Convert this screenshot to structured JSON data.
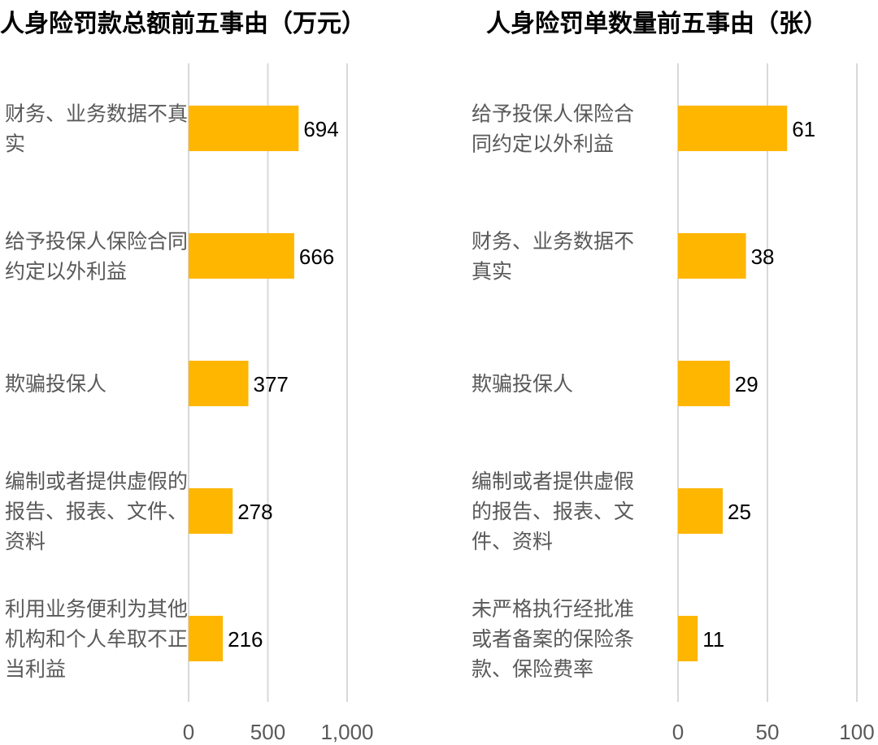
{
  "colors": {
    "bar": "#FFB600",
    "grid": "#D9D9D9",
    "text": "#595959",
    "value_text": "#000000"
  },
  "chart_data": [
    {
      "type": "bar",
      "orientation": "horizontal",
      "title": "人身险罚款总额前五事由（万元）",
      "categories": [
        "财务、业务数据不真实",
        "给予投保人保险合同约定以外利益",
        "欺骗投保人",
        "编制或者提供虚假的报告、报表、文件、资料",
        "利用业务便利为其他机构和个人牟取不正当利益"
      ],
      "values": [
        694,
        666,
        377,
        278,
        216
      ],
      "value_labels": [
        "694",
        "666",
        "377",
        "278",
        "216"
      ],
      "xlim": [
        0,
        1000
      ],
      "ticks": [
        0,
        500,
        1000
      ],
      "tick_labels": [
        "0",
        "500",
        "1,000"
      ],
      "grid": true,
      "legend": "none"
    },
    {
      "type": "bar",
      "orientation": "horizontal",
      "title": "人身险罚单数量前五事由（张）",
      "categories": [
        "给予投保人保险合同约定以外利益",
        "财务、业务数据不真实",
        "欺骗投保人",
        "编制或者提供虚假的报告、报表、文件、资料",
        "未严格执行经批准或者备案的保险条款、保险费率"
      ],
      "values": [
        61,
        38,
        29,
        25,
        11
      ],
      "value_labels": [
        "61",
        "38",
        "29",
        "25",
        "11"
      ],
      "xlim": [
        0,
        100
      ],
      "ticks": [
        0,
        50,
        100
      ],
      "tick_labels": [
        "0",
        "50",
        "100"
      ],
      "grid": true,
      "legend": "none"
    }
  ]
}
